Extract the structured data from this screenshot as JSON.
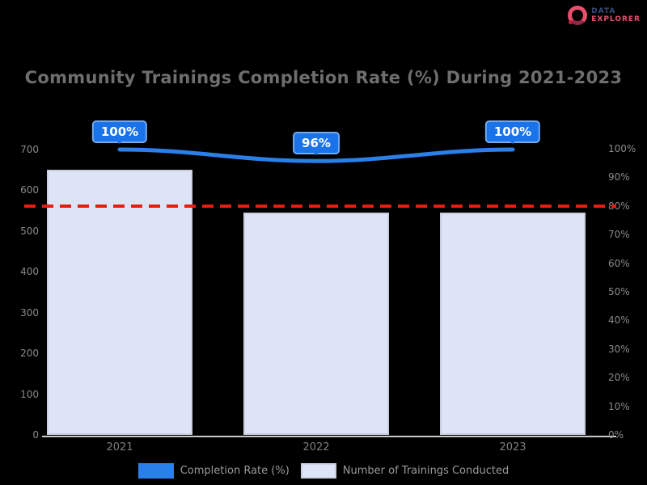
{
  "background": "#000000",
  "logo": {
    "line1": "DATA",
    "line2": "EXPLORER",
    "accent_color": "#e8506e",
    "navy_color": "#3a4a7a"
  },
  "chart_data": {
    "type": "combo",
    "title": "Community Trainings Completion Rate (%) During 2021-2023",
    "categories": [
      "2021",
      "2022",
      "2023"
    ],
    "series": [
      {
        "name": "Completion Rate (%)",
        "type": "line",
        "axis": "right",
        "values": [
          100,
          96,
          100
        ],
        "point_labels": [
          "100%",
          "96%",
          "100%"
        ],
        "color": "#2a7fe8",
        "label_box_color": "#1a73e8"
      },
      {
        "name": "Number of Trainings Conducted",
        "type": "bar",
        "axis": "left",
        "values": [
          650,
          545,
          545
        ],
        "color": "#dde4f6",
        "border_color": "#c9cfdf"
      }
    ],
    "target_line": {
      "axis": "right",
      "value": 80,
      "color": "#ea1c0d",
      "style": "dashed"
    },
    "axes": {
      "left": {
        "min": 0,
        "max": 700,
        "tick_labels": [
          "700",
          "600",
          "500",
          "400",
          "300",
          "200",
          "100",
          "0"
        ]
      },
      "right": {
        "min": 0,
        "max": 100,
        "tick_labels": [
          "100%",
          "90%",
          "80%",
          "70%",
          "60%",
          "50%",
          "40%",
          "30%",
          "20%",
          "10%",
          "0%"
        ]
      }
    },
    "legend": {
      "position": "bottom",
      "items": [
        {
          "label": "Completion Rate (%)",
          "swatch_color": "#2a7fe8",
          "swatch_border": "#2a7fe8"
        },
        {
          "label": "Number of Trainings Conducted",
          "swatch_color": "#dde4f6",
          "swatch_border": "#c9cfdf"
        }
      ]
    }
  }
}
